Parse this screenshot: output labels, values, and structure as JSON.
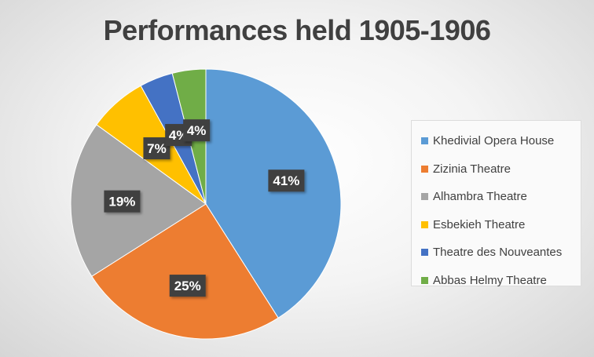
{
  "chart_data": {
    "type": "pie",
    "title": "Performances held 1905-1906",
    "slices": [
      {
        "name": "Khedivial Opera House",
        "value": 41,
        "label": "41%",
        "color": "#5B9BD5"
      },
      {
        "name": "Zizinia Theatre",
        "value": 25,
        "label": "25%",
        "color": "#ED7D31"
      },
      {
        "name": "Alhambra Theatre",
        "value": 19,
        "label": "19%",
        "color": "#A5A5A5"
      },
      {
        "name": "Esbekieh Theatre",
        "value": 7,
        "label": "7%",
        "color": "#FFC000"
      },
      {
        "name": "Theatre des Nouveantes",
        "value": 4,
        "label": "4%",
        "color": "#4472C4"
      },
      {
        "name": "Abbas Helmy Theatre",
        "value": 4,
        "label": "4%",
        "color": "#70AD47"
      }
    ],
    "legend_position": "right"
  }
}
